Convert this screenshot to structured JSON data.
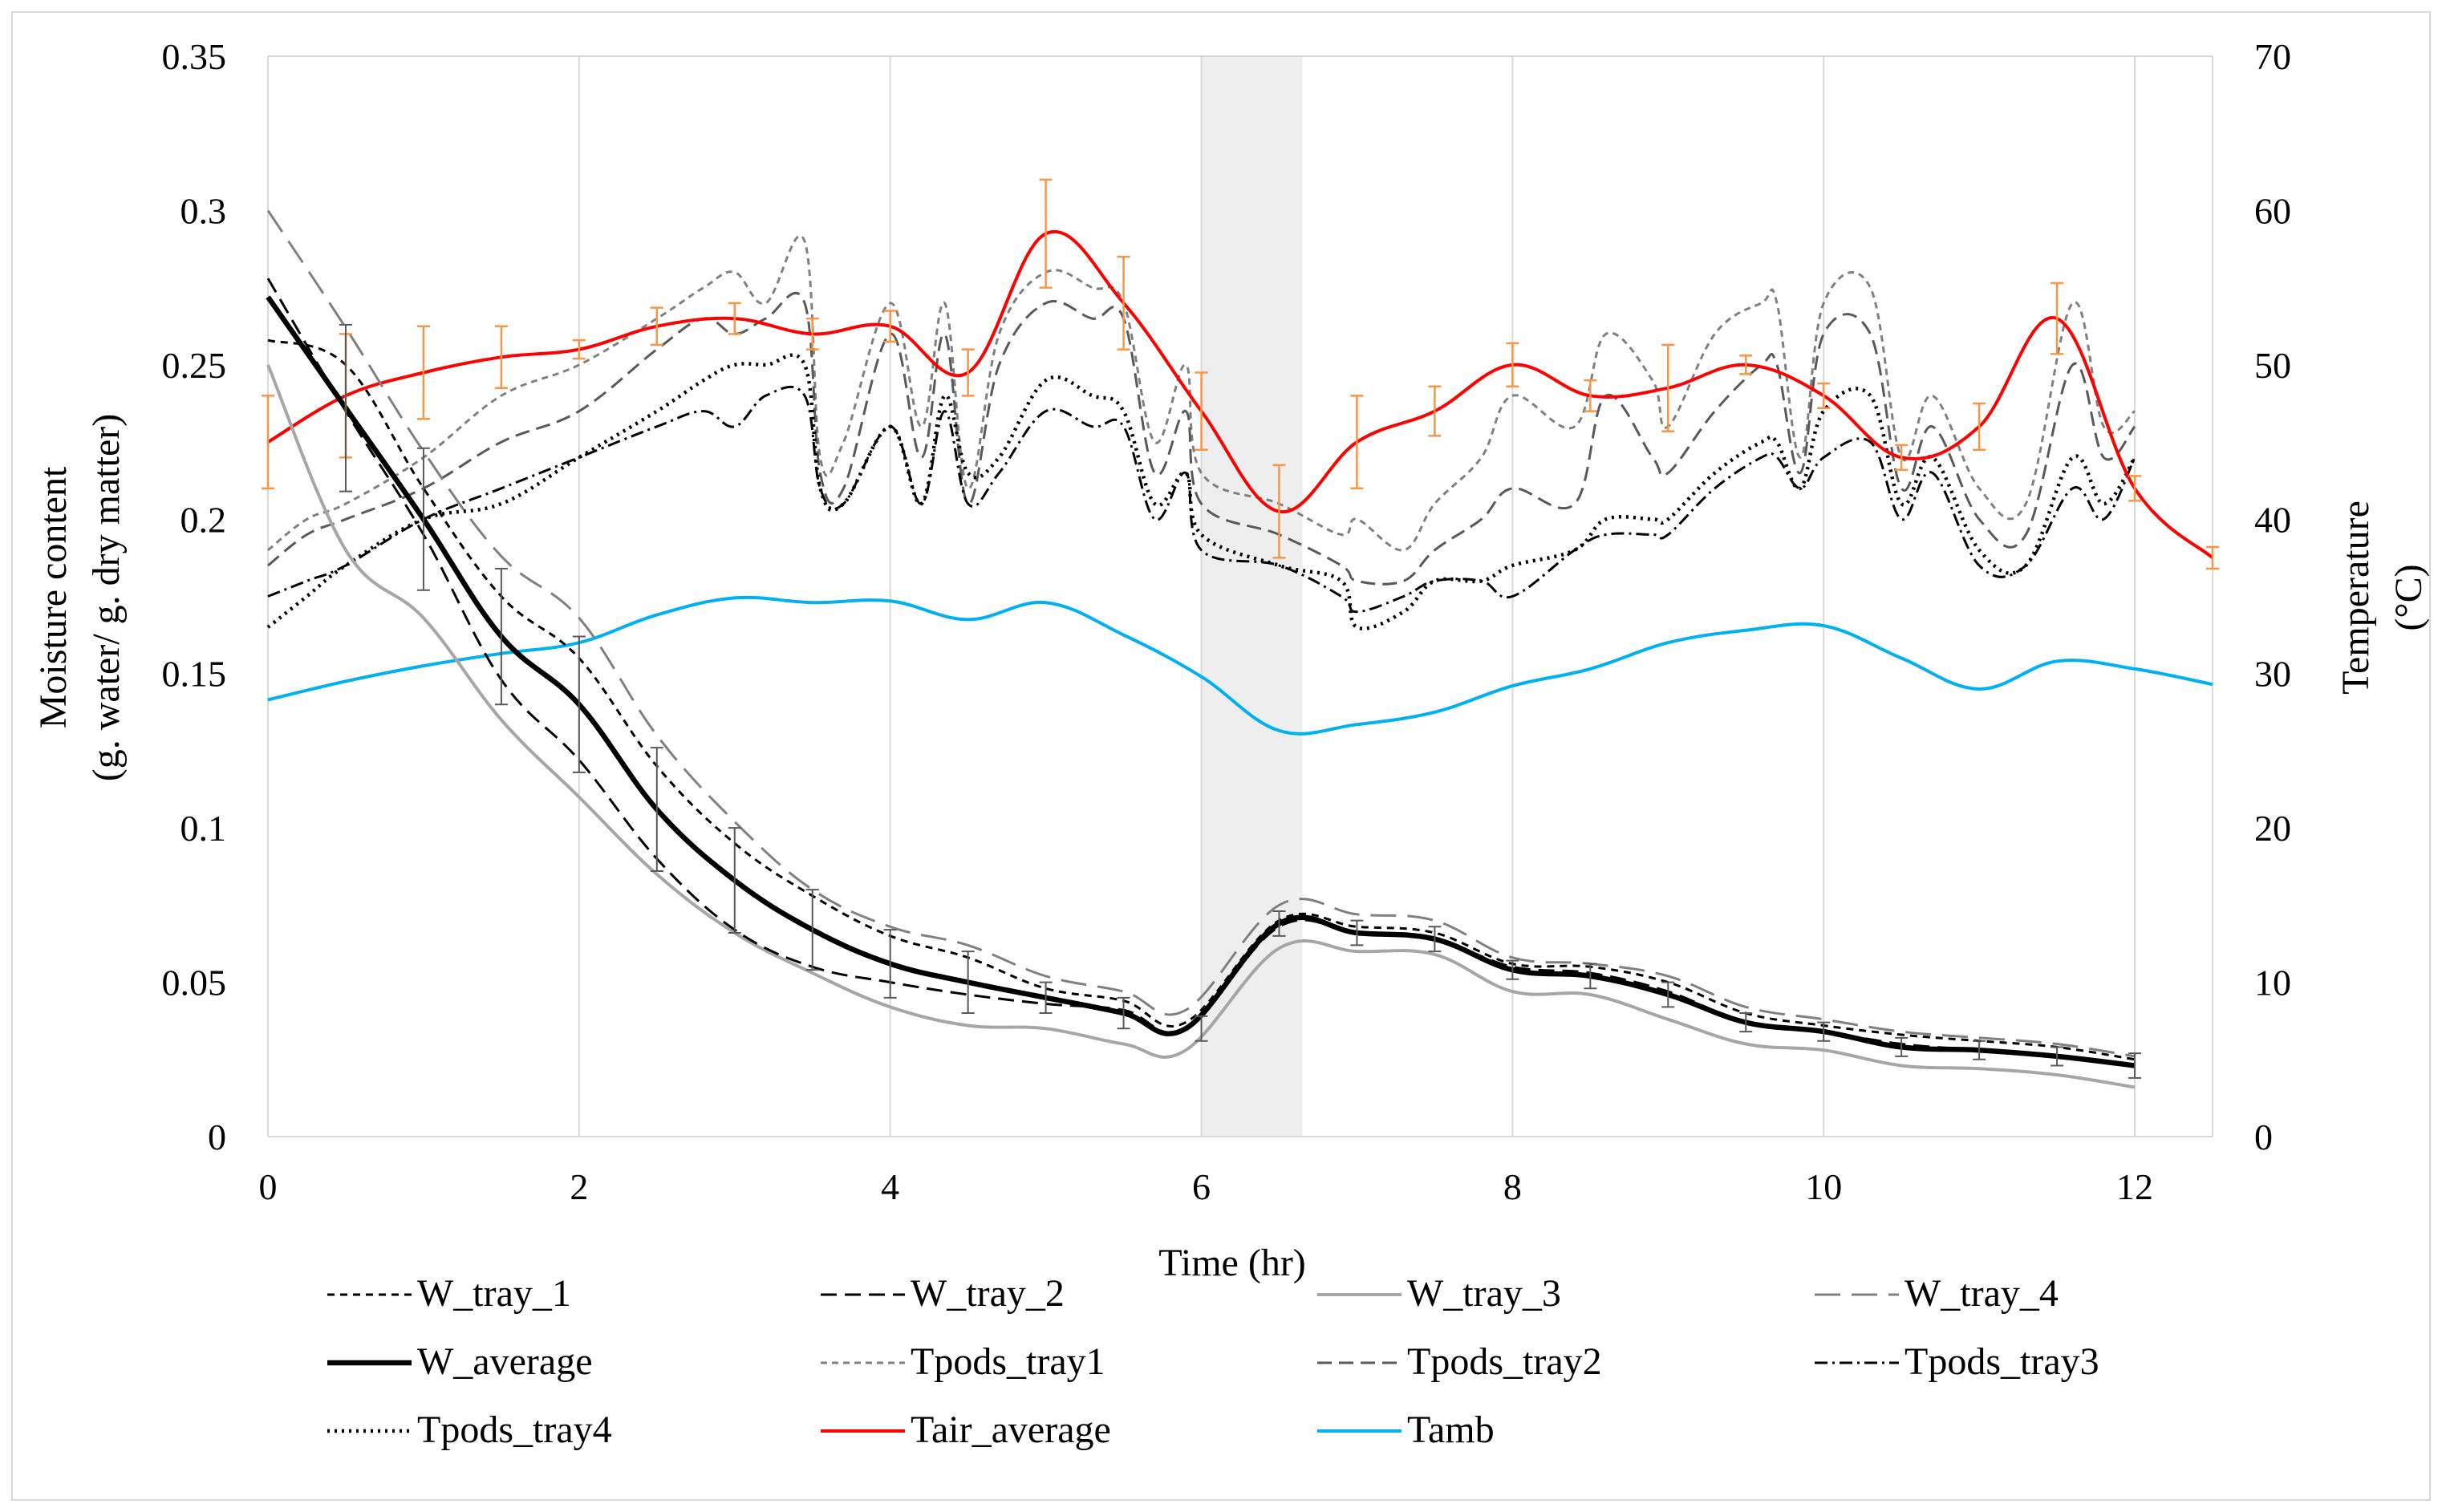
{
  "chart_data": {
    "type": "line",
    "xlabel": "Time (hr)",
    "ylabel_left_line1": "Moisture content",
    "ylabel_left_line2": "(g. water/ g. dry matter)",
    "ylabel_right_line1": "Temperature",
    "ylabel_right_line2": "(°C)",
    "xlim": [
      0,
      12.5
    ],
    "ylim_left": [
      0,
      0.35
    ],
    "ylim_right": [
      0,
      70
    ],
    "x_ticks": [
      "0",
      "2",
      "4",
      "6",
      "8",
      "10",
      "12"
    ],
    "x_tick_values": [
      0,
      2,
      4,
      6,
      8,
      10,
      12
    ],
    "y_ticks_left": [
      "0",
      "0.05",
      "0.1",
      "0.15",
      "0.2",
      "0.25",
      "0.3",
      "0.35"
    ],
    "y_tick_values_left": [
      0,
      0.05,
      0.1,
      0.15,
      0.2,
      0.25,
      0.3,
      0.35
    ],
    "y_ticks_right": [
      "0",
      "10",
      "20",
      "30",
      "40",
      "50",
      "60",
      "70"
    ],
    "y_tick_values_right": [
      0,
      10,
      20,
      30,
      40,
      50,
      60,
      70
    ],
    "grid": "vertical",
    "shaded_band": {
      "x_start": 6.0,
      "x_end": 6.65,
      "color": "#eeeeee"
    },
    "legend_position": "bottom",
    "series": [
      {
        "name": "W_tray_1",
        "axis": "left",
        "color": "#000000",
        "width": 3,
        "dash": "9,7",
        "x": [
          0,
          0.5,
          1,
          1.5,
          2,
          2.5,
          3,
          3.5,
          4,
          4.5,
          5,
          5.5,
          5.9,
          6.5,
          7,
          7.5,
          8,
          8.5,
          9,
          9.5,
          10,
          10.5,
          11,
          11.5,
          12
        ],
        "y": [
          0.258,
          0.25,
          0.21,
          0.175,
          0.155,
          0.12,
          0.095,
          0.078,
          0.065,
          0.058,
          0.048,
          0.044,
          0.037,
          0.07,
          0.068,
          0.066,
          0.056,
          0.055,
          0.05,
          0.04,
          0.036,
          0.033,
          0.031,
          0.029,
          0.025
        ]
      },
      {
        "name": "W_tray_2",
        "axis": "left",
        "color": "#000000",
        "width": 3,
        "dash": "20,10",
        "x": [
          0,
          0.5,
          1,
          1.5,
          2,
          2.5,
          3,
          3.5,
          4,
          4.5,
          5,
          5.5,
          5.9,
          6.5,
          7,
          7.5,
          8,
          8.5,
          9,
          9.5,
          10,
          10.5,
          11,
          11.5,
          12
        ],
        "y": [
          0.278,
          0.235,
          0.195,
          0.148,
          0.122,
          0.09,
          0.067,
          0.055,
          0.05,
          0.046,
          0.043,
          0.041,
          0.035,
          0.068,
          0.066,
          0.064,
          0.055,
          0.053,
          0.047,
          0.037,
          0.034,
          0.03,
          0.028,
          0.026,
          0.023
        ]
      },
      {
        "name": "W_tray_3",
        "axis": "left",
        "color": "#a6a6a6",
        "width": 4,
        "dash": "",
        "x": [
          0,
          0.5,
          1,
          1.5,
          2,
          2.5,
          3,
          3.5,
          4,
          4.5,
          5,
          5.5,
          5.9,
          6.5,
          7,
          7.5,
          8,
          8.5,
          9,
          9.5,
          10,
          10.5,
          11,
          11.5,
          12
        ],
        "y": [
          0.25,
          0.19,
          0.168,
          0.135,
          0.11,
          0.085,
          0.066,
          0.053,
          0.042,
          0.036,
          0.035,
          0.03,
          0.028,
          0.061,
          0.06,
          0.059,
          0.047,
          0.046,
          0.038,
          0.03,
          0.028,
          0.023,
          0.022,
          0.02,
          0.016
        ]
      },
      {
        "name": "W_tray_4",
        "axis": "left",
        "color": "#808080",
        "width": 3,
        "dash": "32,14",
        "x": [
          0,
          0.5,
          1,
          1.5,
          2,
          2.5,
          3,
          3.5,
          4,
          4.5,
          5,
          5.5,
          5.9,
          6.5,
          7,
          7.5,
          8,
          8.5,
          9,
          9.5,
          10,
          10.5,
          11,
          11.5,
          12
        ],
        "y": [
          0.3,
          0.262,
          0.222,
          0.188,
          0.168,
          0.13,
          0.102,
          0.08,
          0.068,
          0.062,
          0.052,
          0.047,
          0.041,
          0.075,
          0.072,
          0.07,
          0.058,
          0.056,
          0.052,
          0.042,
          0.038,
          0.034,
          0.032,
          0.03,
          0.026
        ]
      },
      {
        "name": "W_average",
        "axis": "left",
        "color": "#000000",
        "width": 6.5,
        "dash": "",
        "x": [
          0,
          0.5,
          1,
          1.5,
          2,
          2.5,
          3,
          3.5,
          4,
          4.5,
          5,
          5.5,
          5.9,
          6.5,
          7,
          7.5,
          8,
          8.5,
          9,
          9.5,
          10,
          10.5,
          11,
          11.5,
          12
        ],
        "y": [
          0.272,
          0.236,
          0.2,
          0.162,
          0.14,
          0.106,
          0.083,
          0.067,
          0.056,
          0.05,
          0.045,
          0.04,
          0.035,
          0.069,
          0.066,
          0.064,
          0.054,
          0.052,
          0.046,
          0.037,
          0.034,
          0.029,
          0.028,
          0.026,
          0.023
        ]
      },
      {
        "name": "Tpods_tray1",
        "axis": "right",
        "color": "#808080",
        "width": 3,
        "dash": "8,6",
        "x": [
          0,
          0.25,
          0.5,
          1,
          1.5,
          2,
          2.5,
          2.8,
          3,
          3.2,
          3.45,
          3.55,
          3.7,
          4,
          4.2,
          4.35,
          4.5,
          4.7,
          5,
          5.3,
          5.5,
          5.7,
          5.9,
          6,
          6.5,
          6.9,
          7,
          7.3,
          7.5,
          7.8,
          8,
          8.4,
          8.6,
          8.9,
          9,
          9.3,
          9.6,
          9.7,
          9.85,
          10,
          10.3,
          10.5,
          10.7,
          11,
          11.3,
          11.6,
          11.8,
          12
        ],
        "y": [
          38,
          40,
          41,
          44,
          48,
          50,
          53,
          55,
          56,
          54,
          58,
          44,
          45,
          54,
          46,
          54,
          42,
          52,
          56,
          55,
          54,
          45,
          50,
          43,
          41,
          39,
          40,
          38,
          41,
          44,
          48,
          46,
          52,
          49,
          46,
          52,
          54,
          54,
          44,
          54,
          55,
          44,
          48,
          42,
          41,
          54,
          46,
          47
        ]
      },
      {
        "name": "Tpods_tray2",
        "axis": "right",
        "color": "#595959",
        "width": 3,
        "dash": "18,9",
        "x": [
          0,
          0.25,
          0.5,
          1,
          1.5,
          2,
          2.5,
          2.8,
          3,
          3.2,
          3.45,
          3.55,
          3.7,
          4,
          4.2,
          4.35,
          4.5,
          4.7,
          5,
          5.3,
          5.5,
          5.7,
          5.9,
          6,
          6.5,
          6.9,
          7,
          7.3,
          7.5,
          7.8,
          8,
          8.4,
          8.6,
          8.9,
          9,
          9.3,
          9.6,
          9.7,
          9.85,
          10,
          10.3,
          10.5,
          10.7,
          11,
          11.3,
          11.6,
          11.8,
          12
        ],
        "y": [
          37,
          39,
          40,
          42,
          45,
          47,
          51,
          53,
          52,
          53,
          54,
          43,
          42,
          52,
          44,
          52,
          41,
          50,
          54,
          53,
          53,
          43,
          47,
          41,
          39,
          37,
          36,
          36,
          38,
          40,
          42,
          41,
          48,
          44,
          43,
          47,
          50,
          50,
          43,
          52,
          52,
          42,
          46,
          40,
          39,
          50,
          44,
          46
        ]
      },
      {
        "name": "Tpods_tray3",
        "axis": "right",
        "color": "#000000",
        "width": 3,
        "dash": "16,6,3,6",
        "x": [
          0,
          0.25,
          0.5,
          1,
          1.5,
          2,
          2.5,
          2.8,
          3,
          3.2,
          3.45,
          3.55,
          3.7,
          4,
          4.2,
          4.35,
          4.5,
          4.7,
          5,
          5.3,
          5.5,
          5.7,
          5.9,
          6,
          6.5,
          6.9,
          7,
          7.3,
          7.5,
          7.8,
          8,
          8.4,
          8.6,
          8.9,
          9,
          9.3,
          9.6,
          9.7,
          9.85,
          10,
          10.3,
          10.5,
          10.7,
          11,
          11.3,
          11.6,
          11.8,
          12
        ],
        "y": [
          35,
          36,
          37,
          40,
          42,
          44,
          46,
          47,
          46,
          48,
          48,
          42,
          41,
          46,
          41,
          47,
          41,
          43,
          47,
          46,
          46,
          40,
          43,
          38,
          37,
          35,
          34,
          35,
          36,
          36,
          35,
          38,
          39,
          39,
          39,
          42,
          44,
          44,
          42,
          44,
          45,
          40,
          43,
          37,
          37,
          42,
          40,
          44
        ]
      },
      {
        "name": "Tpods_tray4",
        "axis": "right",
        "color": "#000000",
        "width": 4.5,
        "dash": "3,6",
        "x": [
          0,
          0.25,
          0.5,
          1,
          1.5,
          2,
          2.5,
          2.8,
          3,
          3.2,
          3.45,
          3.55,
          3.7,
          4,
          4.2,
          4.35,
          4.5,
          4.7,
          5,
          5.3,
          5.5,
          5.7,
          5.9,
          6,
          6.5,
          6.9,
          7,
          7.3,
          7.5,
          7.8,
          8,
          8.4,
          8.6,
          8.9,
          9,
          9.3,
          9.6,
          9.7,
          9.85,
          10,
          10.3,
          10.5,
          10.7,
          11,
          11.3,
          11.6,
          11.8,
          12
        ],
        "y": [
          33,
          35,
          37,
          40,
          41,
          44,
          47,
          49,
          50,
          50,
          50,
          42,
          41,
          46,
          41,
          48,
          43,
          44,
          49,
          48,
          47,
          41,
          43,
          39,
          37,
          36,
          33,
          34,
          36,
          36,
          37,
          38,
          40,
          40,
          40,
          43,
          45,
          45,
          42,
          47,
          48,
          41,
          44,
          38,
          37,
          44,
          41,
          44
        ]
      },
      {
        "name": "Tair_average",
        "axis": "right",
        "color": "#ff0000",
        "width": 4,
        "dash": "",
        "x": [
          0,
          0.5,
          1,
          1.5,
          2,
          2.5,
          3,
          3.5,
          4,
          4.5,
          5,
          5.5,
          6,
          6.5,
          7,
          7.5,
          8,
          8.5,
          9,
          9.5,
          10,
          10.5,
          11,
          11.5,
          12,
          12.5
        ],
        "y": [
          45,
          48,
          49.5,
          50.5,
          51,
          52.5,
          53,
          52,
          52.5,
          49.5,
          58.5,
          54,
          47,
          40.5,
          45,
          47,
          50,
          48,
          48.5,
          50,
          48,
          44,
          46,
          53,
          42,
          37.5
        ],
        "err": [
          3,
          4,
          3,
          2,
          0.6,
          1.2,
          1,
          1,
          1,
          1.5,
          3.5,
          3,
          2.5,
          3,
          3,
          1.6,
          1.4,
          1,
          2.8,
          0.6,
          0.8,
          0.8,
          1.5,
          2.3,
          0.8,
          0.7
        ]
      },
      {
        "name": "Tamb",
        "axis": "right",
        "color": "#00b0f0",
        "width": 4,
        "dash": "",
        "x": [
          0,
          0.5,
          1,
          1.5,
          2,
          2.5,
          3,
          3.5,
          4,
          4.5,
          5,
          5.5,
          6,
          6.5,
          7,
          7.5,
          8,
          8.5,
          9,
          9.5,
          10,
          10.5,
          11,
          11.5,
          12,
          12.5
        ],
        "y": [
          28.3,
          29.5,
          30.5,
          31.3,
          32,
          33.8,
          34.9,
          34.6,
          34.7,
          33.5,
          34.6,
          32.5,
          29.8,
          26.3,
          26.7,
          27.5,
          29.2,
          30.3,
          32,
          32.8,
          33.1,
          31,
          29,
          30.8,
          30.3,
          29.3
        ]
      }
    ],
    "error_bars_w": {
      "x": [
        0.5,
        1,
        1.5,
        2,
        2.5,
        3,
        3.5,
        4,
        4.5,
        5,
        5.5,
        6,
        6.5,
        7,
        7.5,
        8,
        8.5,
        9,
        9.5,
        10,
        10.5,
        11,
        11.5,
        12
      ],
      "y": [
        0.236,
        0.2,
        0.162,
        0.14,
        0.106,
        0.083,
        0.067,
        0.056,
        0.05,
        0.045,
        0.04,
        0.035,
        0.069,
        0.066,
        0.064,
        0.054,
        0.052,
        0.046,
        0.037,
        0.034,
        0.029,
        0.028,
        0.026,
        0.023
      ],
      "err": [
        0.027,
        0.023,
        0.022,
        0.022,
        0.02,
        0.017,
        0.013,
        0.011,
        0.01,
        0.005,
        0.005,
        0.004,
        0.004,
        0.004,
        0.004,
        0.003,
        0.004,
        0.004,
        0.003,
        0.003,
        0.003,
        0.003,
        0.003,
        0.004
      ]
    }
  }
}
